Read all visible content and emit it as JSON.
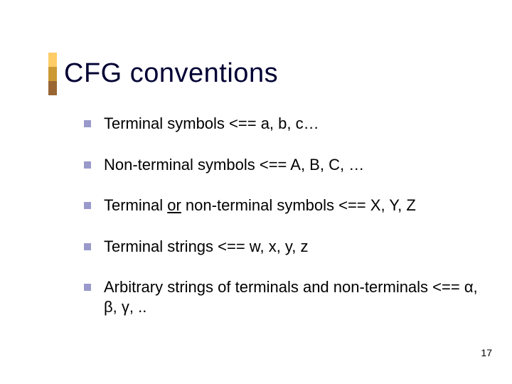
{
  "title": "CFG conventions",
  "accent_colors": {
    "top": "#ffcc66",
    "middle": "#cc9933",
    "bottom": "#996633"
  },
  "bullet_color": "#9999cc",
  "title_color": "#000033",
  "title_fontsize": 38,
  "body_fontsize": 22,
  "background_color": "#ffffff",
  "bullets": {
    "b1": "Terminal symbols <== a, b, c…",
    "b2": "Non-terminal symbols <== A, B, C, …",
    "b3_pre": "Terminal ",
    "b3_und": "or",
    "b3_post": " non-terminal symbols <== X, Y, Z",
    "b4": "Terminal strings <== w, x, y, z",
    "b5": "Arbitrary strings of terminals and non-terminals <== α, β, γ, .."
  },
  "page_number": "17"
}
